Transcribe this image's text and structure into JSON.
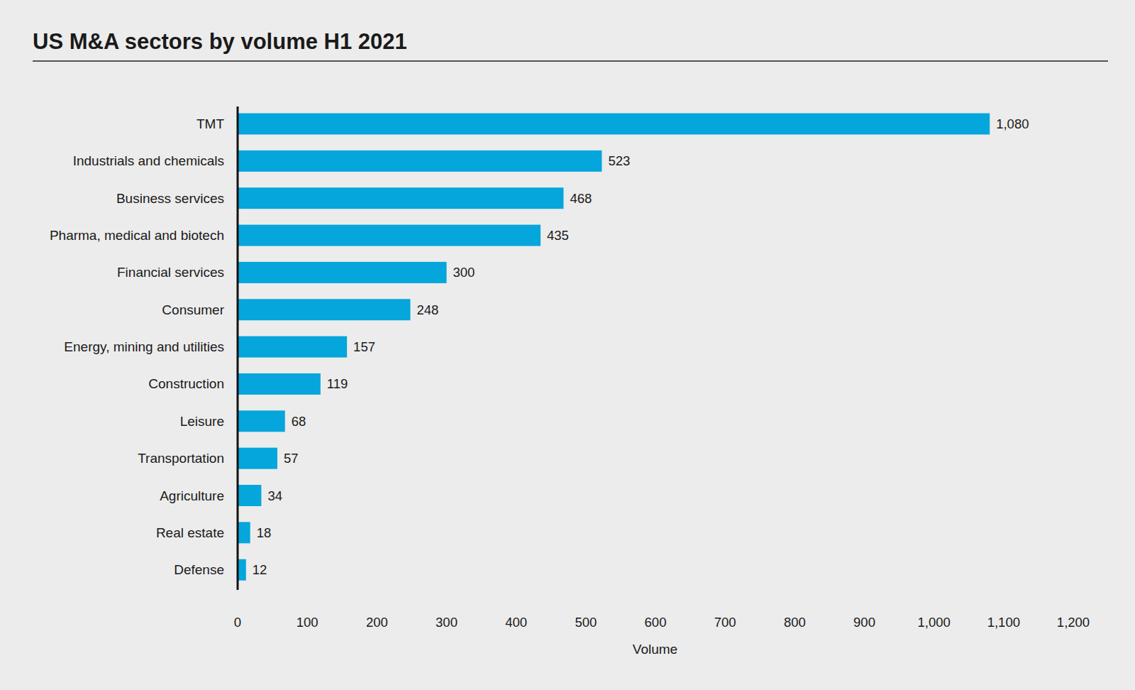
{
  "chart_data": {
    "type": "bar",
    "orientation": "horizontal",
    "title": "US M&A sectors by volume H1 2021",
    "xlabel": "Volume",
    "categories": [
      "TMT",
      "Industrials and chemicals",
      "Business services",
      "Pharma, medical and biotech",
      "Financial services",
      "Consumer",
      "Energy, mining and utilities",
      "Construction",
      "Leisure",
      "Transportation",
      "Agriculture",
      "Real estate",
      "Defense"
    ],
    "values": [
      1080,
      523,
      468,
      435,
      300,
      248,
      157,
      119,
      68,
      57,
      34,
      18,
      12
    ],
    "value_labels": [
      "1,080",
      "523",
      "468",
      "435",
      "300",
      "248",
      "157",
      "119",
      "68",
      "57",
      "34",
      "18",
      "12"
    ],
    "color": "#05a6db",
    "xlim": [
      0,
      1200
    ],
    "xticks": [
      0,
      100,
      200,
      300,
      400,
      500,
      600,
      700,
      800,
      900,
      {
        "value": 1000,
        "label": "1,000"
      },
      {
        "value": 1100,
        "label": "1,100"
      },
      {
        "value": 1200,
        "label": "1,200"
      }
    ],
    "grid": false,
    "data_labels": true
  }
}
